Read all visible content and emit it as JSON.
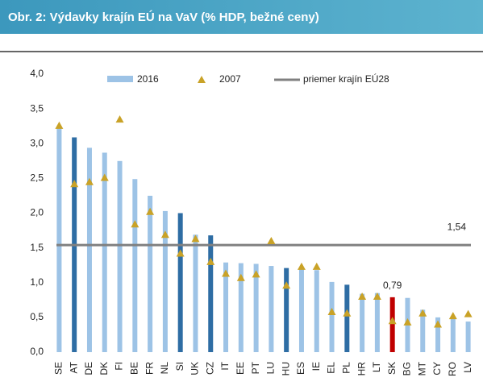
{
  "chart_data": {
    "type": "bar",
    "title": "Obr. 2: Výdavky krajín EÚ na VaV (% HDP, bežné ceny)",
    "categories": [
      "SE",
      "AT",
      "DE",
      "DK",
      "FI",
      "BE",
      "FR",
      "NL",
      "SI",
      "UK",
      "CZ",
      "IT",
      "EE",
      "PT",
      "LU",
      "HU",
      "ES",
      "IE",
      "EL",
      "PL",
      "HR",
      "LT",
      "SK",
      "BG",
      "MT",
      "CY",
      "RO",
      "LV"
    ],
    "series": [
      {
        "name": "2016",
        "color": "#9dc3e6",
        "colors": [
          "#9dc3e6",
          "#2e6da4",
          "#9dc3e6",
          "#9dc3e6",
          "#9dc3e6",
          "#9dc3e6",
          "#9dc3e6",
          "#9dc3e6",
          "#2e6da4",
          "#9dc3e6",
          "#2e6da4",
          "#9dc3e6",
          "#9dc3e6",
          "#9dc3e6",
          "#9dc3e6",
          "#2e6da4",
          "#9dc3e6",
          "#9dc3e6",
          "#9dc3e6",
          "#2e6da4",
          "#9dc3e6",
          "#9dc3e6",
          "#c00000",
          "#9dc3e6",
          "#9dc3e6",
          "#9dc3e6",
          "#9dc3e6",
          "#9dc3e6"
        ],
        "values": [
          3.25,
          3.09,
          2.94,
          2.87,
          2.75,
          2.49,
          2.25,
          2.03,
          2.0,
          1.69,
          1.68,
          1.29,
          1.28,
          1.27,
          1.24,
          1.21,
          1.19,
          1.18,
          1.01,
          0.97,
          0.84,
          0.85,
          0.79,
          0.78,
          0.61,
          0.5,
          0.48,
          0.44
        ],
        "value_labels": [
          null,
          null,
          null,
          null,
          null,
          null,
          null,
          null,
          null,
          null,
          null,
          null,
          null,
          null,
          null,
          null,
          null,
          null,
          null,
          null,
          null,
          null,
          "0,79",
          null,
          null,
          null,
          null,
          null
        ]
      },
      {
        "name": "2007",
        "color": "#c9a227",
        "marker": "triangle",
        "values": [
          3.26,
          2.42,
          2.45,
          2.51,
          3.35,
          1.84,
          2.02,
          1.69,
          1.42,
          1.63,
          1.3,
          1.13,
          1.07,
          1.12,
          1.6,
          0.96,
          1.23,
          1.23,
          0.58,
          0.56,
          0.8,
          0.8,
          0.45,
          0.43,
          0.56,
          0.4,
          0.52,
          0.55
        ]
      }
    ],
    "average": {
      "name": "priemer krajín EÚ28",
      "value": 1.54,
      "value_label": "1,54",
      "color": "#808080"
    },
    "ylim": [
      0,
      4
    ],
    "yticks": [
      {
        "value": 0,
        "label": "0,0"
      },
      {
        "value": 0.5,
        "label": "0,5"
      },
      {
        "value": 1,
        "label": "1,0"
      },
      {
        "value": 1.5,
        "label": "1,5"
      },
      {
        "value": 2,
        "label": "2,0"
      },
      {
        "value": 2.5,
        "label": "2,5"
      },
      {
        "value": 3,
        "label": "3,0"
      },
      {
        "value": 3.5,
        "label": "3,5"
      },
      {
        "value": 4,
        "label": "4,0"
      }
    ],
    "grid": false
  }
}
